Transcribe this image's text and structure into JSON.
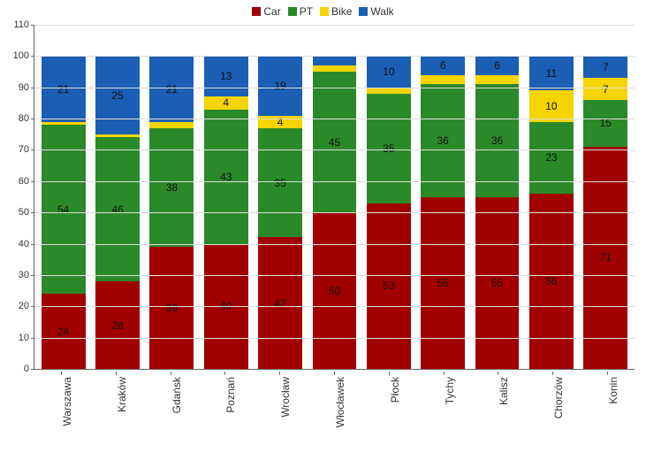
{
  "chart": {
    "type": "stacked-bar",
    "ylim": [
      0,
      110
    ],
    "ytick_step": 10,
    "background_color": "#ffffff",
    "grid_color": "#dddddd",
    "axis_color": "#666666",
    "bar_width": 0.9,
    "series": [
      {
        "key": "car",
        "label": "Car",
        "color": "#a00000"
      },
      {
        "key": "pt",
        "label": "PT",
        "color": "#2a8a2a"
      },
      {
        "key": "bike",
        "label": "Bike",
        "color": "#f5d400"
      },
      {
        "key": "walk",
        "label": "Walk",
        "color": "#1a5fb4"
      }
    ],
    "label_threshold": 3,
    "label_fontsize": 12,
    "axis_fontsize": 11,
    "categories": [
      {
        "name": "Warszawa",
        "car": 24,
        "pt": 54,
        "bike": 1,
        "walk": 21
      },
      {
        "name": "Kraków",
        "car": 28,
        "pt": 46,
        "bike": 1,
        "walk": 25
      },
      {
        "name": "Gdańsk",
        "car": 39,
        "pt": 38,
        "bike": 2,
        "walk": 21
      },
      {
        "name": "Poznań",
        "car": 40,
        "pt": 43,
        "bike": 4,
        "walk": 13
      },
      {
        "name": "Wrocław",
        "car": 42,
        "pt": 35,
        "bike": 4,
        "walk": 19
      },
      {
        "name": "Włocławek",
        "car": 50,
        "pt": 45,
        "bike": 2,
        "walk": 3
      },
      {
        "name": "Płock",
        "car": 53,
        "pt": 35,
        "bike": 2,
        "walk": 10
      },
      {
        "name": "Tychy",
        "car": 55,
        "pt": 36,
        "bike": 3,
        "walk": 6
      },
      {
        "name": "Kalisz",
        "car": 55,
        "pt": 36,
        "bike": 3,
        "walk": 6
      },
      {
        "name": "Chorzów",
        "car": 56,
        "pt": 23,
        "bike": 10,
        "walk": 11
      },
      {
        "name": "Konin",
        "car": 71,
        "pt": 15,
        "bike": 7,
        "walk": 7
      }
    ]
  }
}
